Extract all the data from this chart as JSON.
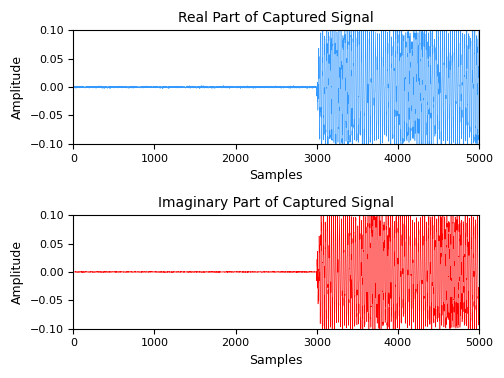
{
  "title1": "Real Part of Captured Signal",
  "title2": "Imaginary Part of Captured Signal",
  "xlabel": "Samples",
  "ylabel": "Amplitude",
  "n_samples": 5000,
  "noise_samples": 3000,
  "signal_amplitude": 0.09,
  "noise_amplitude": 0.0008,
  "color1": "#3399FF",
  "color2": "#FF0000",
  "ylim": [
    -0.1,
    0.1
  ],
  "xlim": [
    0,
    5000
  ],
  "xticks": [
    0,
    1000,
    2000,
    3000,
    4000,
    5000
  ],
  "yticks": [
    -0.1,
    -0.05,
    0,
    0.05,
    0.1
  ],
  "signal_freq_factor": 0.04,
  "signal_noise_amp": 0.015,
  "linewidth": 0.4,
  "title_fontsize": 10,
  "label_fontsize": 9,
  "tick_fontsize": 8,
  "figsize": [
    5.04,
    3.78
  ],
  "dpi": 100
}
